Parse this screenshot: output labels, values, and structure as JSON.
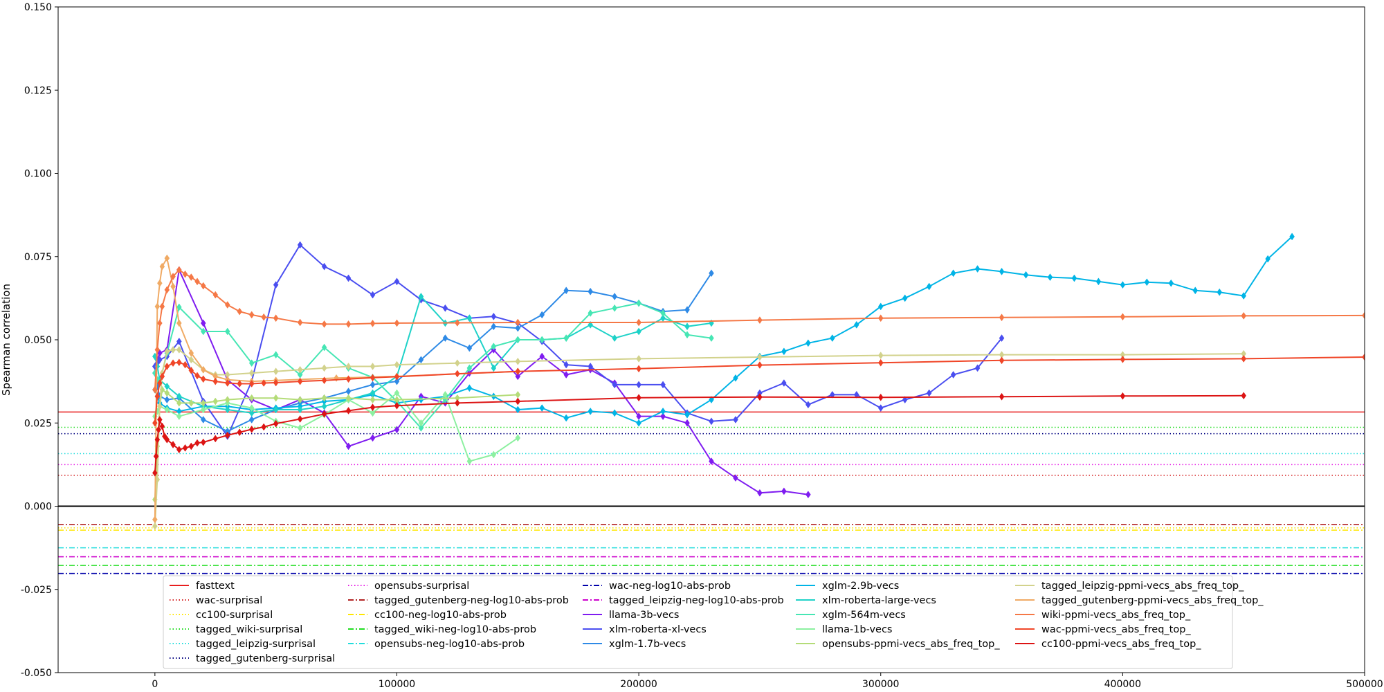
{
  "chart_data": {
    "type": "line",
    "title": "",
    "xlabel": "",
    "ylabel": "Spearman correlation",
    "xlim": [
      -40000,
      500000
    ],
    "ylim": [
      -0.05,
      0.15
    ],
    "xticks": [
      "0",
      "100000",
      "200000",
      "300000",
      "400000",
      "500000"
    ],
    "yticks": [
      "-0.050",
      "-0.025",
      "0.000",
      "0.025",
      "0.050",
      "0.075",
      "0.100",
      "0.125",
      "0.150"
    ],
    "grid": false,
    "legend_position": "lower-left",
    "zero_line_color": "#000000",
    "baselines": [
      {
        "name": "fasttext",
        "value": 0.0283,
        "color": "#e81e1e",
        "style": "solid"
      },
      {
        "name": "wac-surprisal",
        "value": 0.0093,
        "color": "#d62728",
        "style": "dotted"
      },
      {
        "name": "cc100-surprisal",
        "value": -0.0065,
        "color": "#ffe600",
        "style": "dotted"
      },
      {
        "name": "tagged_wiki-surprisal",
        "value": 0.0237,
        "color": "#22dd22",
        "style": "dotted"
      },
      {
        "name": "tagged_leipzig-surprisal",
        "value": 0.0158,
        "color": "#22dddd",
        "style": "dotted"
      },
      {
        "name": "tagged_gutenberg-surprisal",
        "value": 0.0218,
        "color": "#000080",
        "style": "dotted"
      },
      {
        "name": "opensubs-surprisal",
        "value": 0.0125,
        "color": "#e619e6",
        "style": "dotted"
      },
      {
        "name": "tagged_gutenberg-neg-log10-abs-prob",
        "value": -0.0055,
        "color": "#b22222",
        "style": "dashdot"
      },
      {
        "name": "cc100-neg-log10-abs-prob",
        "value": -0.0072,
        "color": "#ffe600",
        "style": "dashdot"
      },
      {
        "name": "tagged_wiki-neg-log10-abs-prob",
        "value": -0.0178,
        "color": "#22dd22",
        "style": "dashdot"
      },
      {
        "name": "opensubs-neg-log10-abs-prob",
        "value": -0.0125,
        "color": "#22dddd",
        "style": "dashdot"
      },
      {
        "name": "wac-neg-log10-abs-prob",
        "value": -0.0202,
        "color": "#0000aa",
        "style": "dashdot"
      },
      {
        "name": "tagged_leipzig-neg-log10-abs-prob",
        "value": -0.0152,
        "color": "#cc00cc",
        "style": "dashdot"
      }
    ],
    "series": [
      {
        "name": "llama-3b-vecs",
        "color": "#7f1cf0",
        "x": [
          0,
          1000,
          2000,
          5000,
          10000,
          20000,
          30000,
          40000,
          50000,
          60000,
          70000,
          80000,
          90000,
          100000,
          110000,
          120000,
          130000,
          140000,
          150000,
          160000,
          170000,
          180000,
          190000,
          200000,
          210000,
          220000,
          230000,
          240000,
          250000,
          260000,
          270000
        ],
        "y": [
          0.042,
          0.044,
          0.046,
          0.047,
          0.071,
          0.055,
          0.038,
          0.032,
          0.029,
          0.032,
          0.028,
          0.018,
          0.0205,
          0.023,
          0.033,
          0.031,
          0.04,
          0.047,
          0.039,
          0.045,
          0.0395,
          0.041,
          0.037,
          0.027,
          0.027,
          0.025,
          0.0135,
          0.0085,
          0.004,
          0.0045,
          0.0035
        ]
      },
      {
        "name": "xlm-roberta-xl-vecs",
        "color": "#4a4ef0",
        "x": [
          0,
          1000,
          2000,
          5000,
          10000,
          20000,
          30000,
          40000,
          50000,
          60000,
          70000,
          80000,
          90000,
          100000,
          110000,
          120000,
          130000,
          140000,
          150000,
          160000,
          170000,
          180000,
          190000,
          200000,
          210000,
          220000,
          230000,
          240000,
          250000,
          260000,
          270000,
          280000,
          290000,
          300000,
          310000,
          320000,
          330000,
          340000,
          350000
        ],
        "y": [
          0.042,
          0.043,
          0.044,
          0.045,
          0.0495,
          0.0315,
          0.021,
          0.0375,
          0.0665,
          0.0785,
          0.072,
          0.0685,
          0.0635,
          0.0675,
          0.062,
          0.0595,
          0.0565,
          0.057,
          0.055,
          0.0495,
          0.0425,
          0.042,
          0.0365,
          0.0365,
          0.0365,
          0.028,
          0.0255,
          0.026,
          0.034,
          0.037,
          0.0305,
          0.0335,
          0.0335,
          0.0295,
          0.032,
          0.034,
          0.0395,
          0.0415,
          0.0505
        ]
      },
      {
        "name": "xglm-1.7b-vecs",
        "color": "#2e8ae6",
        "x": [
          0,
          1000,
          2000,
          5000,
          10000,
          20000,
          30000,
          40000,
          50000,
          60000,
          70000,
          80000,
          90000,
          100000,
          110000,
          120000,
          130000,
          140000,
          150000,
          160000,
          170000,
          180000,
          190000,
          200000,
          210000,
          220000,
          230000
        ],
        "y": [
          0.04,
          0.036,
          0.033,
          0.032,
          0.0325,
          0.026,
          0.0225,
          0.026,
          0.029,
          0.031,
          0.0325,
          0.0345,
          0.0365,
          0.0375,
          0.044,
          0.0505,
          0.0475,
          0.054,
          0.0535,
          0.0575,
          0.0648,
          0.0645,
          0.063,
          0.061,
          0.0585,
          0.059,
          0.07
        ]
      },
      {
        "name": "xglm-2.9b-vecs",
        "color": "#00b4e6",
        "x": [
          0,
          1000,
          2000,
          5000,
          10000,
          20000,
          30000,
          40000,
          50000,
          60000,
          70000,
          80000,
          90000,
          100000,
          110000,
          120000,
          130000,
          140000,
          150000,
          160000,
          170000,
          180000,
          190000,
          200000,
          210000,
          220000,
          230000,
          240000,
          250000,
          260000,
          270000,
          280000,
          290000,
          300000,
          310000,
          320000,
          330000,
          340000,
          350000,
          360000,
          370000,
          380000,
          390000,
          400000,
          410000,
          420000,
          430000,
          440000,
          450000,
          460000,
          470000
        ],
        "y": [
          0.035,
          0.033,
          0.031,
          0.0295,
          0.0285,
          0.03,
          0.03,
          0.029,
          0.0295,
          0.03,
          0.0315,
          0.032,
          0.0335,
          0.031,
          0.032,
          0.033,
          0.0355,
          0.033,
          0.029,
          0.0295,
          0.0265,
          0.0285,
          0.028,
          0.025,
          0.0285,
          0.0275,
          0.032,
          0.0385,
          0.045,
          0.0465,
          0.049,
          0.0505,
          0.0545,
          0.06,
          0.0625,
          0.066,
          0.07,
          0.0713,
          0.0705,
          0.0695,
          0.0688,
          0.0685,
          0.0675,
          0.0665,
          0.0673,
          0.067,
          0.0648,
          0.0643,
          0.0632,
          0.0743,
          0.081
        ]
      },
      {
        "name": "xlm-roberta-large-vecs",
        "color": "#1ed2c8",
        "x": [
          0,
          1000,
          2000,
          5000,
          10000,
          20000,
          30000,
          40000,
          50000,
          60000,
          70000,
          80000,
          90000,
          100000,
          110000,
          120000,
          130000,
          140000,
          150000,
          160000,
          170000,
          180000,
          190000,
          200000,
          210000,
          220000,
          230000
        ],
        "y": [
          0.045,
          0.042,
          0.038,
          0.036,
          0.033,
          0.03,
          0.029,
          0.028,
          0.029,
          0.029,
          0.03,
          0.032,
          0.034,
          0.039,
          0.063,
          0.055,
          0.0565,
          0.0415,
          0.05,
          0.05,
          0.0505,
          0.0545,
          0.0505,
          0.0525,
          0.0565,
          0.054,
          0.055
        ]
      },
      {
        "name": "xglm-564m-vecs",
        "color": "#46e6b4",
        "x": [
          0,
          1000,
          2000,
          5000,
          10000,
          20000,
          30000,
          40000,
          50000,
          60000,
          70000,
          80000,
          90000,
          100000,
          110000,
          120000,
          130000,
          140000,
          150000,
          160000,
          170000,
          180000,
          190000,
          200000,
          210000,
          220000,
          230000
        ],
        "y": [
          0.04,
          0.038,
          0.037,
          0.046,
          0.0598,
          0.0525,
          0.0525,
          0.043,
          0.0455,
          0.0395,
          0.0477,
          0.0415,
          0.0387,
          0.0315,
          0.0235,
          0.032,
          0.0415,
          0.048,
          0.05,
          0.05,
          0.0505,
          0.058,
          0.0595,
          0.061,
          0.058,
          0.0515,
          0.0505
        ]
      },
      {
        "name": "llama-1b-vecs",
        "color": "#8cf0a0",
        "x": [
          0,
          1000,
          2000,
          5000,
          10000,
          20000,
          30000,
          40000,
          50000,
          60000,
          70000,
          80000,
          90000,
          100000,
          110000,
          120000,
          130000,
          140000,
          150000
        ],
        "y": [
          0.027,
          0.0285,
          0.03,
          0.029,
          0.027,
          0.029,
          0.031,
          0.0295,
          0.0255,
          0.0235,
          0.0275,
          0.032,
          0.028,
          0.034,
          0.025,
          0.0335,
          0.0135,
          0.0155,
          0.0205
        ]
      },
      {
        "name": "opensubs-ppmi-vecs_abs_freq_top_",
        "color": "#b4dc78",
        "x": [
          0,
          1000,
          2000,
          3000,
          5000,
          10000,
          15000,
          20000,
          25000,
          30000,
          40000,
          50000,
          60000,
          70000,
          80000,
          90000,
          100000,
          125000,
          150000
        ],
        "y": [
          0.002,
          0.018,
          0.03,
          0.035,
          0.034,
          0.031,
          0.031,
          0.031,
          0.0315,
          0.032,
          0.0325,
          0.0325,
          0.032,
          0.0325,
          0.0325,
          0.032,
          0.032,
          0.0325,
          0.0335
        ]
      },
      {
        "name": "tagged_leipzig-ppmi-vecs_abs_freq_top_",
        "color": "#d2d28c",
        "x": [
          0,
          1000,
          2000,
          3000,
          5000,
          7500,
          10000,
          15000,
          20000,
          25000,
          30000,
          40000,
          50000,
          60000,
          70000,
          80000,
          90000,
          100000,
          125000,
          150000,
          200000,
          250000,
          300000,
          350000,
          400000,
          450000
        ],
        "y": [
          -0.006,
          0.008,
          0.03,
          0.04,
          0.0465,
          0.047,
          0.047,
          0.044,
          0.041,
          0.0395,
          0.0395,
          0.04,
          0.0405,
          0.041,
          0.0415,
          0.042,
          0.042,
          0.0425,
          0.043,
          0.0435,
          0.0443,
          0.0448,
          0.0453,
          0.0455,
          0.0455,
          0.0458
        ]
      },
      {
        "name": "tagged_gutenberg-ppmi-vecs_abs_freq_top_",
        "color": "#f0aa64",
        "x": [
          0,
          1000,
          2000,
          3000,
          5000,
          7500,
          10000,
          15000,
          20000,
          25000,
          30000,
          40000,
          50000,
          75000,
          100000,
          150000
        ],
        "y": [
          -0.004,
          0.06,
          0.067,
          0.072,
          0.0745,
          0.066,
          0.055,
          0.046,
          0.041,
          0.039,
          0.038,
          0.0375,
          0.0378,
          0.0385,
          0.039,
          0.0405
        ]
      },
      {
        "name": "wiki-ppmi-vecs_abs_freq_top_",
        "color": "#f57846",
        "x": [
          0,
          1000,
          2000,
          3000,
          5000,
          7500,
          10000,
          12500,
          15000,
          17500,
          20000,
          25000,
          30000,
          35000,
          40000,
          45000,
          50000,
          60000,
          70000,
          80000,
          90000,
          100000,
          125000,
          150000,
          200000,
          250000,
          300000,
          350000,
          400000,
          450000,
          500000
        ],
        "y": [
          0.035,
          0.047,
          0.055,
          0.06,
          0.065,
          0.069,
          0.071,
          0.0697,
          0.0688,
          0.0675,
          0.0662,
          0.0635,
          0.0605,
          0.0585,
          0.0575,
          0.0568,
          0.0565,
          0.0552,
          0.0547,
          0.0547,
          0.0549,
          0.055,
          0.0551,
          0.0552,
          0.0552,
          0.0559,
          0.0565,
          0.0567,
          0.0569,
          0.0572,
          0.0573
        ]
      },
      {
        "name": "wac-ppmi-vecs_abs_freq_top_",
        "color": "#f04628",
        "x": [
          0,
          1000,
          2000,
          3000,
          5000,
          7500,
          10000,
          12500,
          15000,
          17500,
          20000,
          25000,
          30000,
          35000,
          40000,
          45000,
          50000,
          60000,
          70000,
          80000,
          90000,
          100000,
          125000,
          150000,
          200000,
          250000,
          300000,
          350000,
          400000,
          450000,
          500000
        ],
        "y": [
          0.025,
          0.033,
          0.037,
          0.039,
          0.042,
          0.043,
          0.0432,
          0.0425,
          0.0408,
          0.0392,
          0.0382,
          0.0375,
          0.037,
          0.0368,
          0.0368,
          0.037,
          0.0371,
          0.0375,
          0.0378,
          0.0382,
          0.0386,
          0.0389,
          0.0398,
          0.0405,
          0.0413,
          0.0424,
          0.0431,
          0.0438,
          0.0441,
          0.0443,
          0.0448
        ]
      },
      {
        "name": "cc100-ppmi-vecs_abs_freq_top_",
        "color": "#dc1414",
        "x": [
          0,
          500,
          1000,
          1500,
          2000,
          3000,
          4000,
          5000,
          7500,
          10000,
          12500,
          15000,
          17500,
          20000,
          25000,
          30000,
          35000,
          40000,
          45000,
          50000,
          60000,
          70000,
          80000,
          90000,
          100000,
          125000,
          150000,
          200000,
          250000,
          300000,
          350000,
          400000,
          450000
        ],
        "y": [
          0.01,
          0.015,
          0.02,
          0.023,
          0.026,
          0.024,
          0.021,
          0.02,
          0.0185,
          0.017,
          0.0175,
          0.018,
          0.019,
          0.0192,
          0.0203,
          0.0213,
          0.0222,
          0.0231,
          0.0238,
          0.0248,
          0.0262,
          0.0277,
          0.0287,
          0.0297,
          0.0302,
          0.031,
          0.0315,
          0.0326,
          0.0328,
          0.0327,
          0.0329,
          0.0331,
          0.0332
        ]
      }
    ]
  }
}
